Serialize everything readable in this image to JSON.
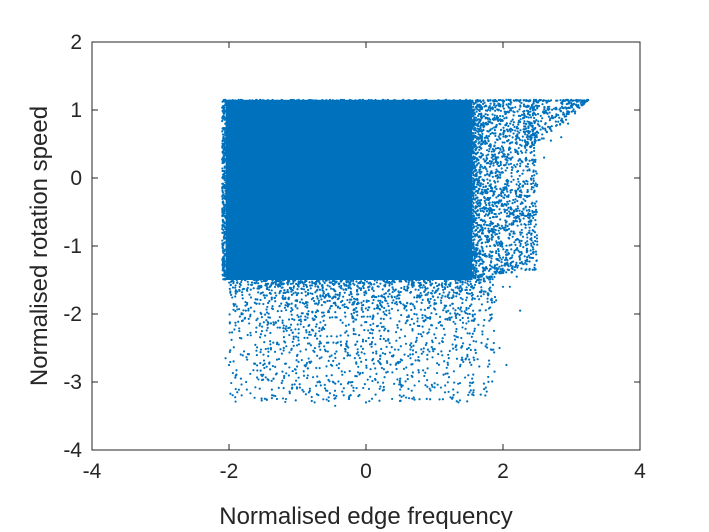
{
  "chart_data": {
    "type": "scatter",
    "xlabel": "Normalised edge frequency",
    "ylabel": "Normalised rotation speed",
    "xlim": [
      -4,
      4
    ],
    "ylim": [
      -4,
      2
    ],
    "xticks": [
      "-4",
      "-2",
      "0",
      "2",
      "4"
    ],
    "yticks": [
      "-4",
      "-3",
      "-2",
      "-1",
      "0",
      "1",
      "2"
    ],
    "grid": false,
    "legend": "none",
    "marker_color": "#0072BD",
    "series": [
      {
        "approximate_region": {
          "x_range": [
            -2.05,
            3.25
          ],
          "y_range": [
            -3.35,
            1.15
          ],
          "dense_core": {
            "x": [
              -2.05,
              1.55
            ],
            "y": [
              -1.5,
              1.15
            ]
          }
        },
        "points": [
          [
            -2.0,
            1.12
          ],
          [
            -1.95,
            0.9
          ],
          [
            -2.02,
            0.4
          ],
          [
            -2.03,
            -0.2
          ],
          [
            -2.0,
            -0.9
          ],
          [
            -2.02,
            -1.4
          ],
          [
            -1.9,
            -1.7
          ],
          [
            -1.8,
            -2.0
          ],
          [
            -1.6,
            -2.2
          ],
          [
            -1.4,
            -2.4
          ],
          [
            -1.2,
            -2.5
          ],
          [
            -1.0,
            -2.6
          ],
          [
            -0.8,
            -2.7
          ],
          [
            -0.5,
            -2.9
          ],
          [
            -0.2,
            -3.0
          ],
          [
            0.2,
            -3.1
          ],
          [
            0.5,
            -2.95
          ],
          [
            0.9,
            -2.8
          ],
          [
            1.2,
            -2.6
          ],
          [
            1.5,
            -2.5
          ],
          [
            1.7,
            -2.3
          ],
          [
            1.8,
            -2.1
          ],
          [
            1.9,
            -1.8
          ],
          [
            2.0,
            -1.6
          ],
          [
            2.2,
            -1.45
          ],
          [
            2.35,
            -1.2
          ],
          [
            2.4,
            -0.9
          ],
          [
            2.45,
            -0.5
          ],
          [
            2.5,
            -0.1
          ],
          [
            2.6,
            0.3
          ],
          [
            2.7,
            0.55
          ],
          [
            2.85,
            0.6
          ],
          [
            2.95,
            0.8
          ],
          [
            3.05,
            0.95
          ],
          [
            3.1,
            1.05
          ],
          [
            3.2,
            1.12
          ],
          [
            -2.05,
            -2.65
          ],
          [
            -2.0,
            -2.75
          ],
          [
            -1.75,
            -3.0
          ],
          [
            -1.3,
            -3.25
          ],
          [
            -0.75,
            -3.3
          ],
          [
            -0.45,
            -3.35
          ],
          [
            0.0,
            -3.3
          ],
          [
            0.55,
            -3.2
          ],
          [
            1.35,
            -3.3
          ],
          [
            1.55,
            -2.95
          ],
          [
            1.1,
            -2.55
          ],
          [
            0.65,
            -2.65
          ],
          [
            -0.3,
            -2.55
          ],
          [
            -1.5,
            -2.75
          ],
          [
            2.05,
            -2.75
          ],
          [
            1.95,
            -2.5
          ],
          [
            2.25,
            -1.95
          ],
          [
            2.1,
            -1.6
          ],
          [
            1.25,
            -2.05
          ],
          [
            -0.9,
            -1.85
          ],
          [
            0.4,
            -1.8
          ],
          [
            -1.6,
            -1.85
          ],
          [
            2.4,
            -0.55
          ],
          [
            2.25,
            -0.8
          ]
        ]
      }
    ]
  }
}
